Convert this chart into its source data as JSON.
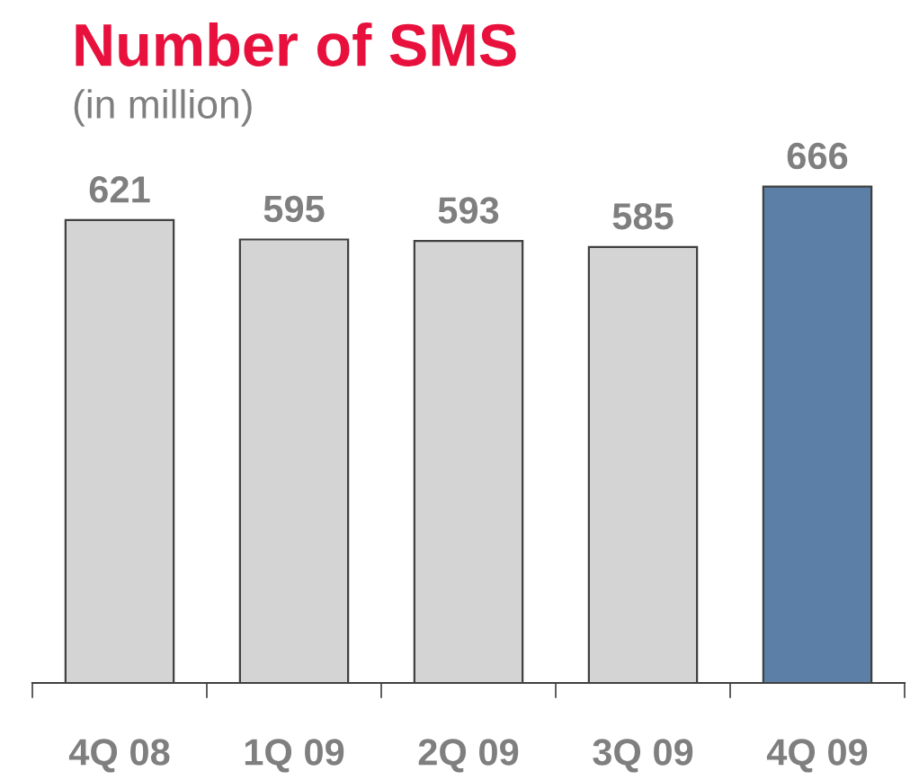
{
  "chart_data": {
    "type": "bar",
    "title": "Number of SMS",
    "subtitle": "(in million)",
    "categories": [
      "4Q 08",
      "1Q 09",
      "2Q 09",
      "3Q 09",
      "4Q 09"
    ],
    "values": [
      621,
      595,
      593,
      585,
      666
    ],
    "colors": [
      "#d4d4d4",
      "#d4d4d4",
      "#d4d4d4",
      "#d4d4d4",
      "#5b7fa6"
    ],
    "tick_labels": "x",
    "data_labels": true,
    "grid": false,
    "legend": false
  }
}
